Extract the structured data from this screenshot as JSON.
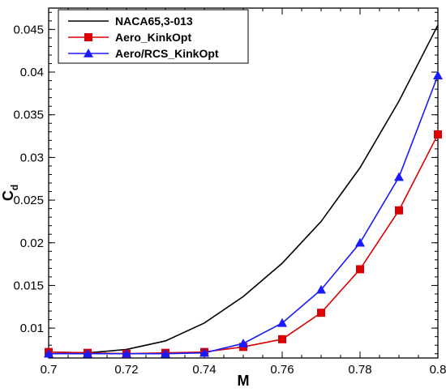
{
  "chart_data": {
    "type": "line",
    "xlabel": "M",
    "ylabel_main": "C",
    "ylabel_sub": "d",
    "xlim": [
      0.7,
      0.8
    ],
    "ylim": [
      0.0065,
      0.0475
    ],
    "xticks": [
      0.7,
      0.72,
      0.74,
      0.76,
      0.78,
      0.8
    ],
    "xtick_labels": [
      "0.7",
      "0.72",
      "0.74",
      "0.76",
      "0.78",
      "0.8"
    ],
    "yticks": [
      0.01,
      0.015,
      0.02,
      0.025,
      0.03,
      0.035,
      0.04,
      0.045
    ],
    "ytick_labels": [
      "0.01",
      "0.015",
      "0.02",
      "0.025",
      "0.03",
      "0.035",
      "0.04",
      "0.045"
    ],
    "grid": false,
    "legend_position": "top-left",
    "series": [
      {
        "name": "NACA65,3-013",
        "color": "#000000",
        "marker": "none",
        "x": [
          0.7,
          0.71,
          0.72,
          0.73,
          0.74,
          0.75,
          0.76,
          0.77,
          0.78,
          0.79,
          0.8
        ],
        "y": [
          0.0072,
          0.0071,
          0.0075,
          0.0085,
          0.0106,
          0.0137,
          0.0176,
          0.0225,
          0.0288,
          0.0366,
          0.0455
        ]
      },
      {
        "name": "Aero_KinkOpt",
        "color": "#dd0000",
        "marker": "square",
        "x": [
          0.7,
          0.71,
          0.72,
          0.73,
          0.74,
          0.75,
          0.76,
          0.77,
          0.78,
          0.79,
          0.8
        ],
        "y": [
          0.0072,
          0.0071,
          0.007,
          0.0071,
          0.0072,
          0.0078,
          0.0087,
          0.0118,
          0.0169,
          0.0238,
          0.0327
        ]
      },
      {
        "name": "Aero/RCS_KinkOpt",
        "color": "#1a1aff",
        "marker": "triangle",
        "x": [
          0.7,
          0.71,
          0.72,
          0.73,
          0.74,
          0.75,
          0.76,
          0.77,
          0.78,
          0.79,
          0.8
        ],
        "y": [
          0.007,
          0.007,
          0.007,
          0.007,
          0.0071,
          0.0082,
          0.0106,
          0.0145,
          0.02,
          0.0277,
          0.0396
        ]
      }
    ]
  }
}
